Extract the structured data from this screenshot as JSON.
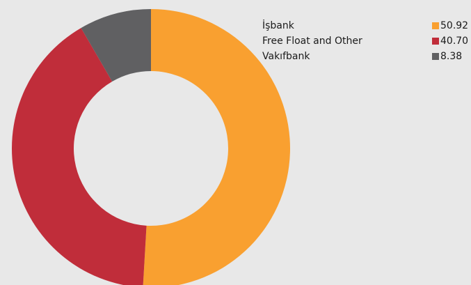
{
  "chart_data": {
    "type": "donut",
    "categories": [
      "İşbank",
      "Free Float and Other",
      "Vakıfbank"
    ],
    "values": [
      50.92,
      40.7,
      8.38
    ],
    "value_labels": [
      "50.92",
      "40.70",
      "8.38"
    ],
    "colors": [
      "#f9a030",
      "#c02d3a",
      "#606062"
    ]
  }
}
